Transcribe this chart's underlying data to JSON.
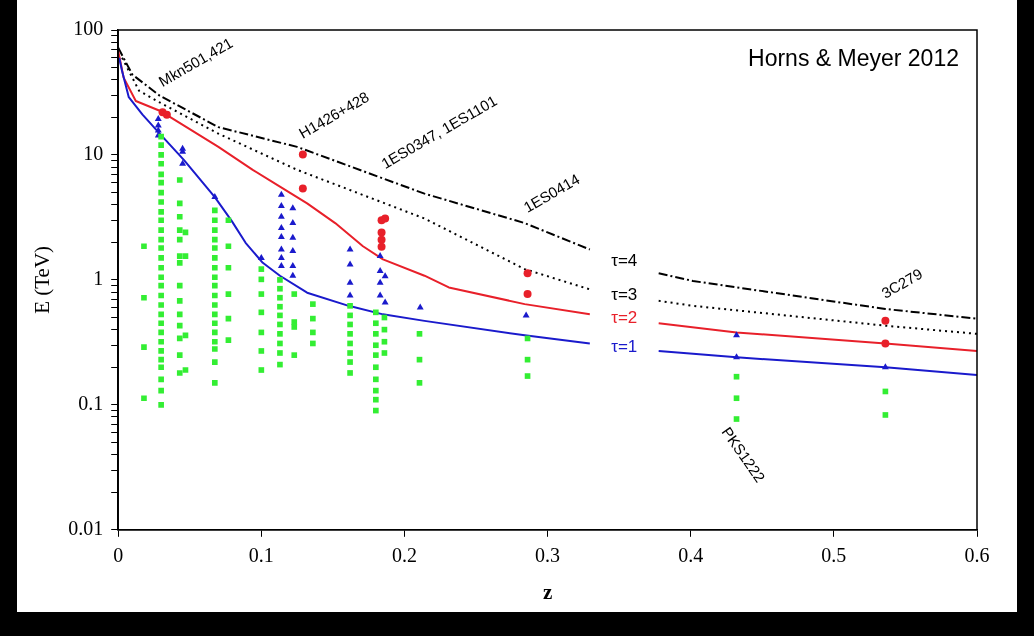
{
  "chart_data": {
    "type": "scatter",
    "xlabel": "z",
    "ylabel": "E (TeV)",
    "log": "y",
    "grid": false,
    "legend": false,
    "xlim": [
      0,
      0.6
    ],
    "xticks": [
      0,
      0.1,
      0.2,
      0.3,
      0.4,
      0.5,
      0.6
    ],
    "ylim": [
      0.01,
      100
    ],
    "yticks": [
      0.01,
      {
        "value": 0.02,
        "label": null
      },
      {
        "value": 0.03,
        "label": null
      },
      {
        "value": 0.04,
        "label": null
      },
      {
        "value": 0.05,
        "label": null
      },
      {
        "value": 0.06,
        "label": null
      },
      {
        "value": 0.07,
        "label": null
      },
      {
        "value": 0.08,
        "label": null
      },
      {
        "value": 0.09,
        "label": null
      },
      0.1,
      {
        "value": 0.2,
        "label": null
      },
      {
        "value": 0.3,
        "label": null
      },
      {
        "value": 0.4,
        "label": null
      },
      {
        "value": 0.5,
        "label": null
      },
      {
        "value": 0.6,
        "label": null
      },
      {
        "value": 0.7,
        "label": null
      },
      {
        "value": 0.8,
        "label": null
      },
      {
        "value": 0.9,
        "label": null
      },
      1,
      {
        "value": 2,
        "label": null
      },
      {
        "value": 3,
        "label": null
      },
      {
        "value": 4,
        "label": null
      },
      {
        "value": 5,
        "label": null
      },
      {
        "value": 6,
        "label": null
      },
      {
        "value": 7,
        "label": null
      },
      {
        "value": 8,
        "label": null
      },
      {
        "value": 9,
        "label": null
      },
      10,
      {
        "value": 20,
        "label": null
      },
      {
        "value": 30,
        "label": null
      },
      {
        "value": 40,
        "label": null
      },
      {
        "value": 50,
        "label": null
      },
      {
        "value": 60,
        "label": null
      },
      {
        "value": 70,
        "label": null
      },
      {
        "value": 80,
        "label": null
      },
      {
        "value": 90,
        "label": null
      },
      100
    ],
    "series": [
      {
        "type": "scatter",
        "marker": "square",
        "color": "#33ee33",
        "x": [
          0.018,
          0.018,
          0.018,
          0.018,
          0.03,
          0.03,
          0.03,
          0.03,
          0.03,
          0.03,
          0.03,
          0.03,
          0.03,
          0.03,
          0.03,
          0.03,
          0.03,
          0.03,
          0.03,
          0.03,
          0.03,
          0.03,
          0.03,
          0.03,
          0.03,
          0.03,
          0.03,
          0.03,
          0.03,
          0.03,
          0.03,
          0.03,
          0.03,
          0.043,
          0.043,
          0.043,
          0.043,
          0.043,
          0.043,
          0.043,
          0.043,
          0.043,
          0.043,
          0.043,
          0.043,
          0.043,
          0.043,
          0.047,
          0.047,
          0.047,
          0.047,
          0.0675,
          0.0675,
          0.0675,
          0.0675,
          0.0675,
          0.0675,
          0.0675,
          0.0675,
          0.0675,
          0.0675,
          0.0675,
          0.0675,
          0.0675,
          0.0675,
          0.0675,
          0.0675,
          0.0675,
          0.0675,
          0.077,
          0.077,
          0.077,
          0.077,
          0.077,
          0.077,
          0.1,
          0.1,
          0.1,
          0.1,
          0.1,
          0.1,
          0.1,
          0.113,
          0.113,
          0.113,
          0.113,
          0.113,
          0.113,
          0.113,
          0.113,
          0.113,
          0.113,
          0.123,
          0.123,
          0.123,
          0.123,
          0.136,
          0.136,
          0.136,
          0.136,
          0.162,
          0.162,
          0.162,
          0.162,
          0.162,
          0.162,
          0.162,
          0.162,
          0.18,
          0.18,
          0.18,
          0.18,
          0.18,
          0.18,
          0.18,
          0.18,
          0.18,
          0.18,
          0.186,
          0.186,
          0.186,
          0.186,
          0.2105,
          0.2105,
          0.2105,
          0.286,
          0.286,
          0.286,
          0.432,
          0.432,
          0.432,
          0.536,
          0.536
        ],
        "values": [
          1.86,
          0.72,
          0.29,
          0.113,
          14,
          12,
          10,
          8.5,
          7,
          6,
          5,
          4.2,
          3.5,
          3,
          2.5,
          2.1,
          1.8,
          1.5,
          1.25,
          1.05,
          0.9,
          0.75,
          0.63,
          0.53,
          0.45,
          0.38,
          0.32,
          0.27,
          0.23,
          0.2,
          0.16,
          0.13,
          0.1,
          6.3,
          4.1,
          3.2,
          2.5,
          2.1,
          1.55,
          1.37,
          0.9,
          0.68,
          0.53,
          0.43,
          0.34,
          0.25,
          0.18,
          2.4,
          1.55,
          0.36,
          0.19,
          3.6,
          3.0,
          2.5,
          2.1,
          1.8,
          1.5,
          1.25,
          1.05,
          0.9,
          0.75,
          0.63,
          0.53,
          0.45,
          0.38,
          0.32,
          0.28,
          0.22,
          0.15,
          3.0,
          1.86,
          1.25,
          0.77,
          0.49,
          0.33,
          1.22,
          1.01,
          0.77,
          0.55,
          0.38,
          0.27,
          0.19,
          1.0,
          0.85,
          0.72,
          0.61,
          0.52,
          0.44,
          0.37,
          0.31,
          0.26,
          0.21,
          0.77,
          0.46,
          0.42,
          0.25,
          0.64,
          0.49,
          0.38,
          0.31,
          0.62,
          0.52,
          0.44,
          0.37,
          0.31,
          0.26,
          0.22,
          0.18,
          0.55,
          0.45,
          0.37,
          0.3,
          0.25,
          0.2,
          0.16,
          0.13,
          0.11,
          0.09,
          0.5,
          0.4,
          0.32,
          0.26,
          0.37,
          0.23,
          0.15,
          0.34,
          0.23,
          0.17,
          0.168,
          0.113,
          0.077,
          0.128,
          0.083
        ]
      },
      {
        "type": "scatter",
        "marker": "triangle",
        "color": "#1a1acc",
        "x": [
          0.028,
          0.028,
          0.028,
          0.028,
          0.045,
          0.045,
          0.045,
          0.0675,
          0.1,
          0.114,
          0.114,
          0.114,
          0.114,
          0.114,
          0.114,
          0.114,
          0.114,
          0.122,
          0.122,
          0.122,
          0.122,
          0.122,
          0.122,
          0.162,
          0.162,
          0.162,
          0.162,
          0.183,
          0.183,
          0.183,
          0.183,
          0.1865,
          0.1865,
          0.211,
          0.285,
          0.432,
          0.432,
          0.536
        ],
        "values": [
          19.4,
          17.2,
          15.7,
          14.3,
          11.2,
          10.6,
          8.5,
          4.6,
          1.5,
          4.8,
          3.9,
          3.2,
          2.6,
          2.2,
          1.75,
          1.5,
          1.29,
          3.75,
          2.85,
          2.17,
          1.7,
          1.29,
          1.08,
          1.75,
          1.33,
          0.95,
          0.75,
          1.55,
          1.18,
          0.95,
          0.75,
          1.07,
          0.66,
          0.6,
          0.52,
          0.36,
          0.24,
          0.2
        ]
      },
      {
        "type": "scatter",
        "marker": "circle",
        "color": "#e8202a",
        "x": [
          0.031,
          0.034,
          0.129,
          0.129,
          0.184,
          0.184,
          0.184,
          0.184,
          0.1865,
          0.286,
          0.286,
          0.536,
          0.536
        ],
        "values": [
          22,
          21,
          10.1,
          5.4,
          3.0,
          2.4,
          2.1,
          1.84,
          3.1,
          1.13,
          0.77,
          0.47,
          0.31
        ]
      },
      {
        "type": "line",
        "name": "τ=1",
        "marker": "none",
        "line_style": "solid",
        "color": "#1a1acc",
        "x": [
          0.0007,
          0.0027,
          0.0074,
          0.017,
          0.029,
          0.046,
          0.0675,
          0.0795,
          0.089,
          0.101,
          0.113,
          0.132,
          0.161,
          0.185,
          0.214,
          0.284,
          0.3295,
          0.35,
          0.3776,
          0.4016,
          0.432,
          0.536,
          0.6
        ],
        "values": [
          60,
          47,
          29,
          21,
          14.8,
          9.1,
          4.6,
          2.94,
          1.98,
          1.37,
          1.08,
          0.79,
          0.62,
          0.53,
          0.47,
          0.36,
          0.31,
          null,
          0.27,
          0.257,
          0.24,
          0.2,
          0.173
        ]
      },
      {
        "type": "line",
        "name": "τ=2",
        "marker": "none",
        "line_style": "solid",
        "color": "#e8202a",
        "x": [
          0,
          0.0038,
          0.0123,
          0.029,
          0.046,
          0.07,
          0.094,
          0.113,
          0.132,
          0.1516,
          0.171,
          0.185,
          0.214,
          0.231,
          0.284,
          0.3295,
          0.35,
          0.3776,
          0.432,
          0.536,
          0.6
        ],
        "values": [
          68,
          41.6,
          27,
          22.6,
          17.2,
          11.6,
          7.6,
          5.57,
          4.1,
          2.85,
          1.86,
          1.46,
          1.08,
          0.87,
          0.64,
          0.53,
          null,
          0.45,
          0.38,
          0.31,
          0.27
        ]
      },
      {
        "type": "line",
        "name": "τ=3",
        "marker": "none",
        "line_style": "dotted",
        "color": "#000000",
        "x": [
          0.0027,
          0.0146,
          0.029,
          0.07,
          0.125,
          0.214,
          0.284,
          0.3295,
          0.35,
          0.3776,
          0.4016,
          0.536,
          0.6
        ],
        "values": [
          60,
          32.6,
          26.3,
          14.8,
          7.6,
          3.1,
          1.22,
          0.84,
          null,
          0.68,
          0.62,
          0.43,
          0.37
        ]
      },
      {
        "type": "line",
        "name": "τ=4",
        "marker": "none",
        "line_style": "dashed",
        "color": "#000000",
        "x": [
          0,
          0.0099,
          0.029,
          0.07,
          0.125,
          0.214,
          0.284,
          0.3295,
          0.35,
          0.3776,
          0.4016,
          0.536,
          0.6
        ],
        "values": [
          72,
          44,
          29.8,
          16.7,
          11.6,
          4.9,
          2.85,
          1.75,
          null,
          1.13,
          0.98,
          0.585,
          0.49
        ]
      }
    ],
    "annotations": [
      {
        "text": "Mkn501,421",
        "x": 0.031,
        "y": 22
      },
      {
        "text": "H1426+428",
        "x": 0.129,
        "y": 10.1
      },
      {
        "text": "1ES0347, 1ES1101",
        "x": 0.1865,
        "y": 6.4
      },
      {
        "text": "1ES0414",
        "x": 0.286,
        "y": 2.85
      },
      {
        "text": "3C279",
        "x": 0.536,
        "y": 0.47
      },
      {
        "text": "PKS1222",
        "x": 0.432,
        "y": 0.077
      },
      "Horns & Meyer 2012"
    ]
  }
}
